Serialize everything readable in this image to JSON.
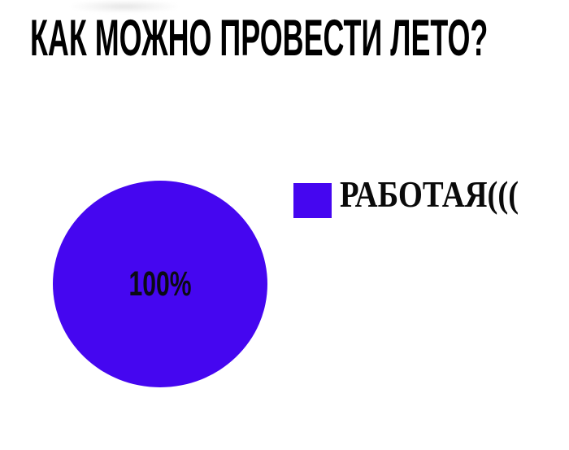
{
  "title": {
    "text": "КАК МОЖНО ПРОВЕСТИ ЛЕТО?",
    "color": "#000000"
  },
  "chart_data": {
    "type": "pie",
    "title": "КАК МОЖНО ПРОВЕСТИ ЛЕТО?",
    "slices": [
      {
        "label": "РАБОТАЯ(((",
        "value": 100,
        "percent_label": "100%",
        "color": "#4506f0"
      }
    ],
    "legend_position": "right",
    "data_labels": "percent",
    "background": "#ffffff"
  },
  "pie": {
    "center_label": "100%",
    "fill": "#4506f0",
    "label_color": "#0b0b14"
  },
  "legend": {
    "items": [
      {
        "label": "РАБОТАЯ(((",
        "swatch_color": "#4506f0",
        "label_color": "#0a0a0a"
      }
    ]
  }
}
